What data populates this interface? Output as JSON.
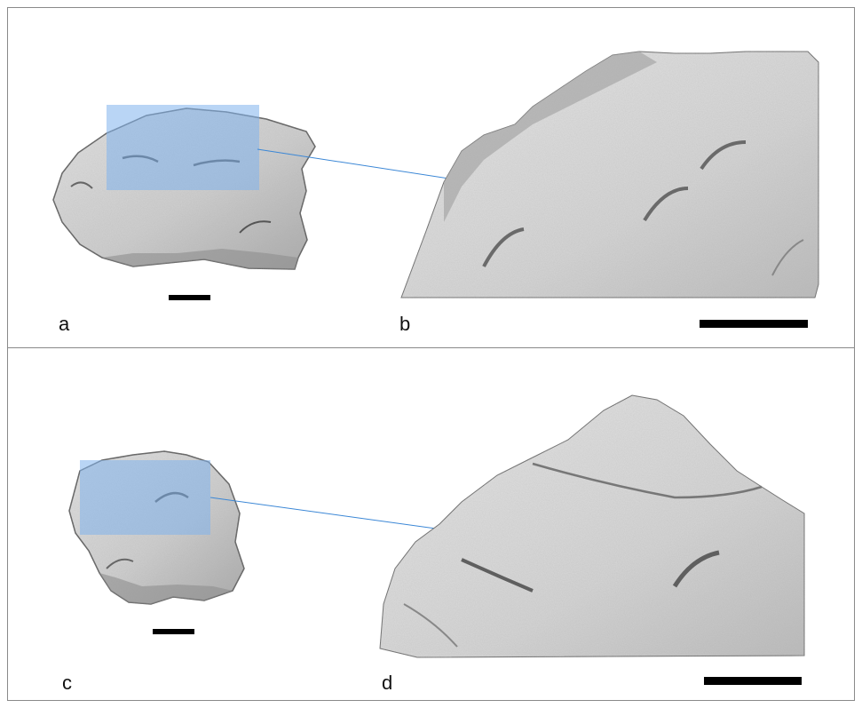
{
  "figure": {
    "panels": [
      {
        "label": "a",
        "content": "stone-overview",
        "scale_bar": true,
        "highlight": "selected-area"
      },
      {
        "label": "b",
        "content": "stone-detail",
        "scale_bar": true
      },
      {
        "label": "c",
        "content": "stone-overview",
        "scale_bar": true,
        "highlight": "selected-area"
      },
      {
        "label": "d",
        "content": "stone-detail",
        "scale_bar": true
      }
    ],
    "colors": {
      "stone_fill": "#c9c9c9",
      "stone_shadow": "#6e6e6e",
      "highlight": "#7fb3ec",
      "connector": "#3b87d6",
      "scale_bar": "#000000",
      "frame": "#8a8a8a"
    }
  }
}
